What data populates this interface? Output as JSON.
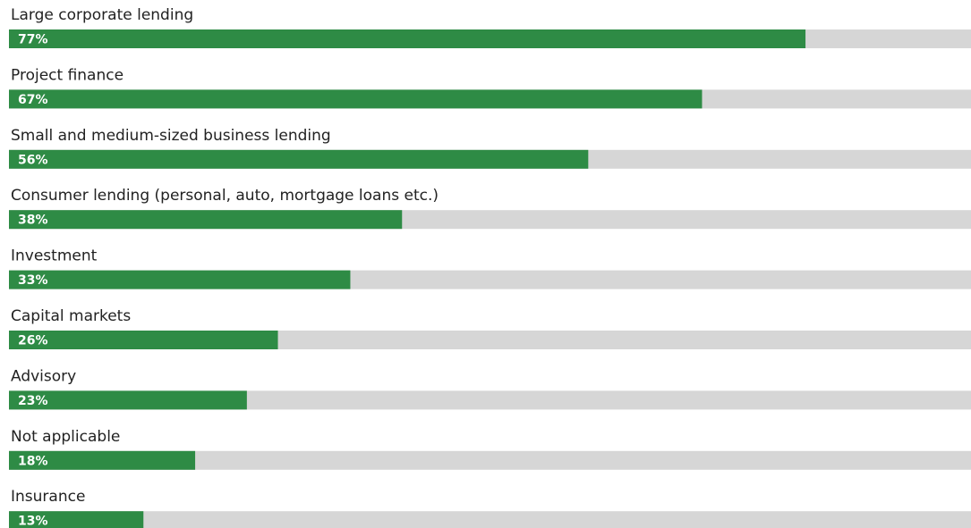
{
  "chart_data": {
    "type": "bar",
    "orientation": "horizontal",
    "categories": [
      "Large corporate lending",
      "Project finance",
      "Small and medium-sized business lending",
      "Consumer lending (personal, auto, mortgage loans etc.)",
      "Investment",
      "Capital markets",
      "Advisory",
      "Not applicable",
      "Insurance"
    ],
    "values": [
      77,
      67,
      56,
      38,
      33,
      26,
      23,
      18,
      13
    ],
    "value_labels": [
      "77%",
      "67%",
      "56%",
      "38%",
      "33%",
      "26%",
      "23%",
      "18%",
      "13%"
    ],
    "color": "#2e8b45",
    "track_color": "#d6d6d6",
    "xlim": [
      0,
      93
    ]
  }
}
